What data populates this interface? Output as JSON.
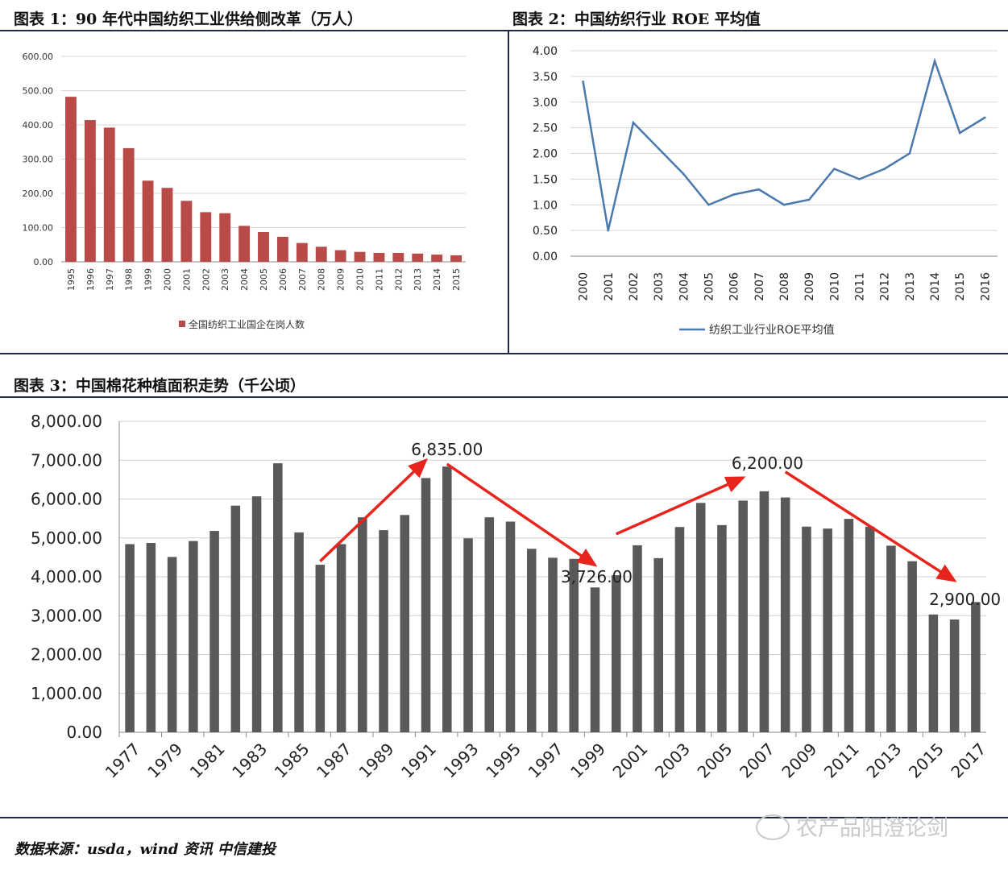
{
  "chart_data": [
    {
      "type": "bar",
      "title": "图表 1：90 年代中国纺织工业供给侧改革（万人）",
      "categories": [
        "1995",
        "1996",
        "1997",
        "1998",
        "1999",
        "2000",
        "2001",
        "2002",
        "2003",
        "2004",
        "2005",
        "2006",
        "2007",
        "2008",
        "2009",
        "2010",
        "2011",
        "2012",
        "2013",
        "2014",
        "2015"
      ],
      "series": [
        {
          "name": "全国纺织工业国企在岗人数",
          "values": [
            482,
            414,
            392,
            332,
            237,
            216,
            178,
            145,
            142,
            105,
            87,
            73,
            55,
            44,
            34,
            29,
            26,
            26,
            24,
            21,
            19
          ]
        }
      ],
      "ylim": [
        0,
        600
      ],
      "yticks": [
        "0.00",
        "100.00",
        "200.00",
        "300.00",
        "400.00",
        "500.00",
        "600.00"
      ],
      "grid": true,
      "legend": "bottom",
      "color": "#b84a47"
    },
    {
      "type": "line",
      "title": "图表 2：中国纺织行业 ROE 平均值",
      "categories": [
        "2000",
        "2001",
        "2002",
        "2003",
        "2004",
        "2005",
        "2006",
        "2007",
        "2008",
        "2009",
        "2010",
        "2011",
        "2012",
        "2013",
        "2014",
        "2015",
        "2016"
      ],
      "series": [
        {
          "name": "纺织工业行业ROE平均值",
          "values": [
            3.4,
            0.5,
            2.6,
            2.1,
            1.6,
            1.0,
            1.2,
            1.3,
            1.0,
            1.1,
            1.7,
            1.5,
            1.7,
            2.0,
            3.8,
            2.4,
            2.7
          ]
        }
      ],
      "ylim": [
        0,
        4
      ],
      "yticks": [
        "0.00",
        "0.50",
        "1.00",
        "1.50",
        "2.00",
        "2.50",
        "3.00",
        "3.50",
        "4.00"
      ],
      "grid": true,
      "legend": "bottom",
      "color": "#4a79ad"
    },
    {
      "type": "bar",
      "title": "图表 3：中国棉花种植面积走势（千公顷）",
      "categories": [
        "1977",
        "1978",
        "1979",
        "1980",
        "1981",
        "1982",
        "1983",
        "1984",
        "1985",
        "1986",
        "1987",
        "1988",
        "1989",
        "1990",
        "1991",
        "1992",
        "1993",
        "1994",
        "1995",
        "1996",
        "1997",
        "1998",
        "1999",
        "2000",
        "2001",
        "2002",
        "2003",
        "2004",
        "2005",
        "2006",
        "2007",
        "2008",
        "2009",
        "2010",
        "2011",
        "2012",
        "2013",
        "2014",
        "2015",
        "2016",
        "2017"
      ],
      "xtick_labels": [
        "1977",
        "1979",
        "1981",
        "1983",
        "1985",
        "1987",
        "1989",
        "1991",
        "1993",
        "1995",
        "1997",
        "1999",
        "2001",
        "2003",
        "2005",
        "2007",
        "2009",
        "2011",
        "2013",
        "2015",
        "2017"
      ],
      "series": [
        {
          "values": [
            4840,
            4870,
            4510,
            4920,
            5180,
            5830,
            6070,
            6920,
            5140,
            4310,
            4840,
            5530,
            5200,
            5590,
            6540,
            6835,
            4990,
            5530,
            5420,
            4720,
            4490,
            4460,
            3726,
            4040,
            4810,
            4480,
            5280,
            5900,
            5330,
            5960,
            6200,
            6040,
            5290,
            5240,
            5490,
            5290,
            4800,
            4400,
            3030,
            2900,
            3350
          ]
        }
      ],
      "ylim": [
        0,
        8000
      ],
      "yticks": [
        "0.00",
        "1,000.00",
        "2,000.00",
        "3,000.00",
        "4,000.00",
        "5,000.00",
        "6,000.00",
        "7,000.00",
        "8,000.00"
      ],
      "grid": true,
      "color": "#595959",
      "annotations": [
        {
          "text": "6,835.00",
          "category": "1992",
          "value": 6835
        },
        {
          "text": "3,726.00",
          "category": "1999",
          "value": 3726
        },
        {
          "text": "6,200.00",
          "category": "2007",
          "value": 6200
        },
        {
          "text": "2,900.00",
          "category": "2016",
          "value": 2900
        }
      ],
      "arrows": [
        {
          "from": {
            "category": "1986",
            "value": 4400
          },
          "to": {
            "category": "1991",
            "value": 7000
          }
        },
        {
          "from": {
            "category": "1992",
            "value": 6900
          },
          "to": {
            "category": "1999",
            "value": 4300
          }
        },
        {
          "from": {
            "category": "2000",
            "value": 5100
          },
          "to": {
            "category": "2006",
            "value": 6550
          }
        },
        {
          "from": {
            "category": "2008",
            "value": 6700
          },
          "to": {
            "category": "2016",
            "value": 3900
          }
        }
      ],
      "arrow_color": "#e8251c"
    }
  ],
  "footer": {
    "source": "数据来源：usda，wind 资讯 中信建投",
    "watermark": "农产品阳澄论剑"
  }
}
